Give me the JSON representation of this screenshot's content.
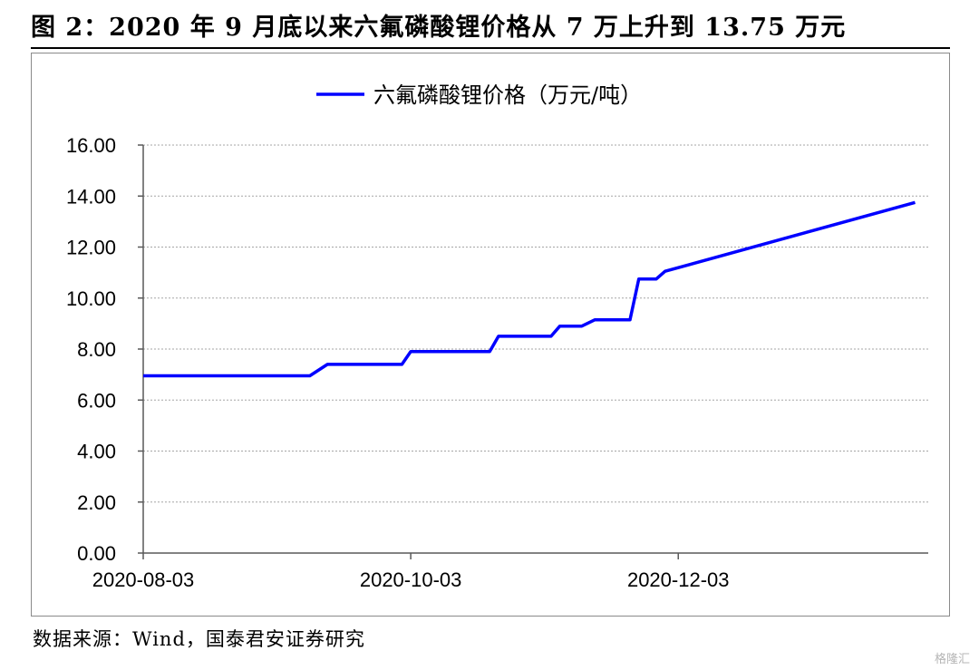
{
  "figure": {
    "title": "图 2：2020 年 9 月底以来六氟磷酸锂价格从 7 万上升到 13.75 万元",
    "source": "数据来源：Wind，国泰君安证券研究",
    "watermark": "格隆汇"
  },
  "colors": {
    "line": "#0000ff",
    "grid": "#a6a6a6",
    "axis": "#595959"
  },
  "chart_data": {
    "type": "line",
    "title": "",
    "xlabel": "",
    "ylabel": "",
    "legend_position": "top-center",
    "grid": true,
    "ylim": [
      0,
      16
    ],
    "yticks": [
      "0.00",
      "2.00",
      "4.00",
      "6.00",
      "8.00",
      "10.00",
      "12.00",
      "14.00",
      "16.00"
    ],
    "xticks": [
      "2020-08-03",
      "2020-10-03",
      "2020-12-03"
    ],
    "xlim": [
      "2020-08-03",
      "2021-01-29"
    ],
    "series": [
      {
        "name": "六氟磷酸锂价格（万元/吨）",
        "x": [
          "2020-08-03",
          "2020-09-10",
          "2020-09-14",
          "2020-10-01",
          "2020-10-03",
          "2020-10-21",
          "2020-10-23",
          "2020-11-04",
          "2020-11-06",
          "2020-11-11",
          "2020-11-14",
          "2020-11-22",
          "2020-11-24",
          "2020-11-28",
          "2020-11-30",
          "2021-01-26"
        ],
        "y": [
          6.95,
          6.95,
          7.4,
          7.4,
          7.9,
          7.9,
          8.5,
          8.5,
          8.9,
          8.9,
          9.15,
          9.15,
          10.75,
          10.75,
          11.05,
          13.75
        ]
      }
    ]
  }
}
